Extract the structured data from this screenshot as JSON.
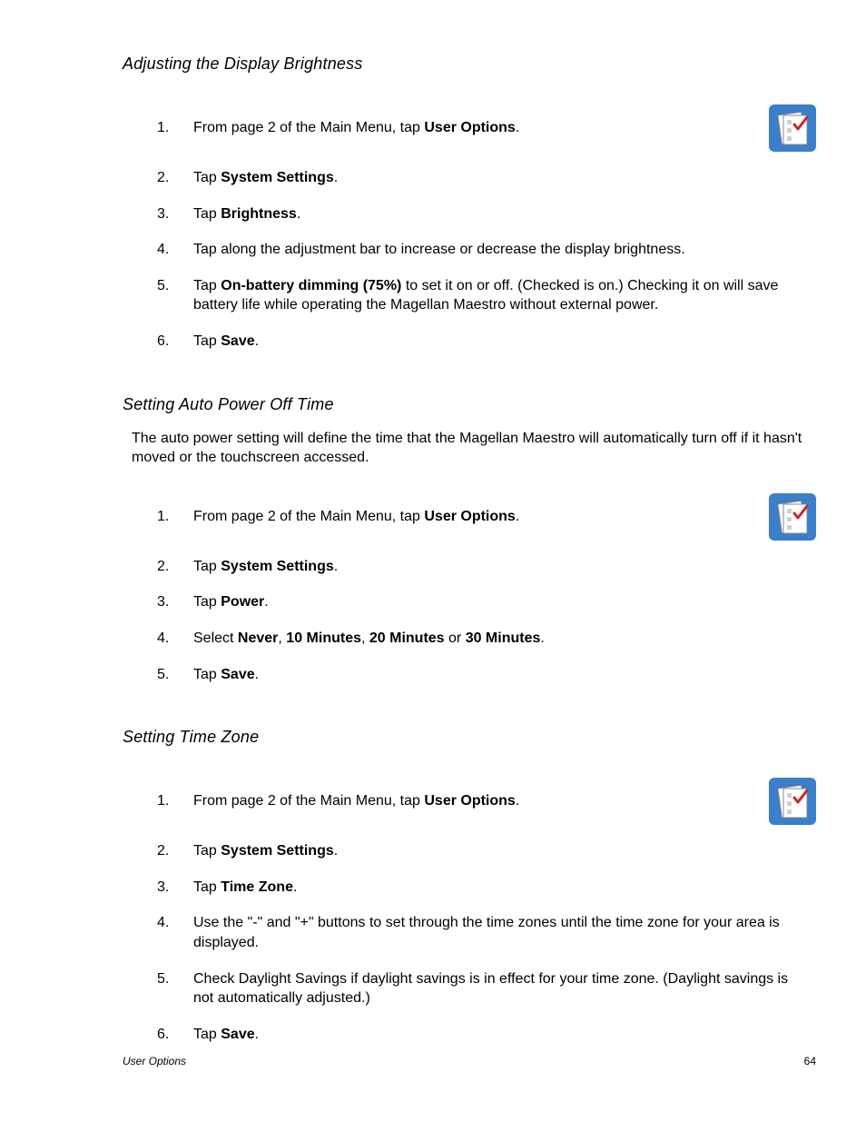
{
  "icon": {
    "bg_color": "#3b7ec9",
    "paper_color": "#ffffff",
    "check_color": "#c62828",
    "box_color": "#d0d0d0"
  },
  "sections": [
    {
      "heading": "Adjusting the Display Brightness",
      "intro": null,
      "steps": [
        {
          "num": "1.",
          "has_icon": true,
          "segments": [
            {
              "t": "From page 2 of the Main Menu, tap "
            },
            {
              "t": "User Options",
              "b": true
            },
            {
              "t": "."
            }
          ]
        },
        {
          "num": "2.",
          "has_icon": false,
          "segments": [
            {
              "t": "Tap "
            },
            {
              "t": "System Settings",
              "b": true
            },
            {
              "t": "."
            }
          ]
        },
        {
          "num": "3.",
          "has_icon": false,
          "segments": [
            {
              "t": "Tap "
            },
            {
              "t": "Brightness",
              "b": true
            },
            {
              "t": "."
            }
          ]
        },
        {
          "num": "4.",
          "has_icon": false,
          "segments": [
            {
              "t": "Tap along the adjustment bar to increase or decrease the display brightness."
            }
          ]
        },
        {
          "num": "5.",
          "has_icon": false,
          "segments": [
            {
              "t": "Tap "
            },
            {
              "t": "On-battery dimming (75%)",
              "b": true
            },
            {
              "t": " to set it on or off.  (Checked is on.)  Checking it on will save battery life while operating the Magellan Maestro without external power."
            }
          ]
        },
        {
          "num": "6.",
          "has_icon": false,
          "segments": [
            {
              "t": "Tap "
            },
            {
              "t": "Save",
              "b": true
            },
            {
              "t": "."
            }
          ]
        }
      ]
    },
    {
      "heading": "Setting Auto Power Off Time",
      "intro": "The auto power setting will define the time that the Magellan Maestro will automatically turn off if it hasn't moved or the touchscreen accessed.",
      "steps": [
        {
          "num": "1.",
          "has_icon": true,
          "segments": [
            {
              "t": "From page 2 of the Main Menu, tap "
            },
            {
              "t": "User Options",
              "b": true
            },
            {
              "t": "."
            }
          ]
        },
        {
          "num": "2.",
          "has_icon": false,
          "segments": [
            {
              "t": "Tap "
            },
            {
              "t": "System Settings",
              "b": true
            },
            {
              "t": "."
            }
          ]
        },
        {
          "num": "3.",
          "has_icon": false,
          "segments": [
            {
              "t": "Tap "
            },
            {
              "t": "Power",
              "b": true
            },
            {
              "t": "."
            }
          ]
        },
        {
          "num": "4.",
          "has_icon": false,
          "segments": [
            {
              "t": "Select "
            },
            {
              "t": "Never",
              "b": true
            },
            {
              "t": ", "
            },
            {
              "t": "10 Minutes",
              "b": true
            },
            {
              "t": ", "
            },
            {
              "t": "20 Minutes",
              "b": true
            },
            {
              "t": " or "
            },
            {
              "t": "30 Minutes",
              "b": true
            },
            {
              "t": "."
            }
          ]
        },
        {
          "num": "5.",
          "has_icon": false,
          "segments": [
            {
              "t": "Tap "
            },
            {
              "t": "Save",
              "b": true
            },
            {
              "t": "."
            }
          ]
        }
      ]
    },
    {
      "heading": "Setting Time Zone",
      "intro": null,
      "steps": [
        {
          "num": "1.",
          "has_icon": true,
          "segments": [
            {
              "t": "From page 2 of the Main Menu, tap "
            },
            {
              "t": "User Options",
              "b": true
            },
            {
              "t": "."
            }
          ]
        },
        {
          "num": "2.",
          "has_icon": false,
          "segments": [
            {
              "t": "Tap "
            },
            {
              "t": "System Settings",
              "b": true
            },
            {
              "t": "."
            }
          ]
        },
        {
          "num": "3.",
          "has_icon": false,
          "segments": [
            {
              "t": "Tap "
            },
            {
              "t": "Time Zone",
              "b": true
            },
            {
              "t": "."
            }
          ]
        },
        {
          "num": "4.",
          "has_icon": false,
          "segments": [
            {
              "t": "Use the \"-\" and \"+\" buttons to set through the time zones until the time zone for your area is displayed."
            }
          ]
        },
        {
          "num": "5.",
          "has_icon": false,
          "segments": [
            {
              "t": "Check Daylight Savings if daylight savings is in effect for your time zone.  (Daylight savings is not automatically adjusted.)"
            }
          ]
        },
        {
          "num": "6.",
          "has_icon": false,
          "segments": [
            {
              "t": "Tap "
            },
            {
              "t": "Save",
              "b": true
            },
            {
              "t": "."
            }
          ]
        }
      ]
    }
  ],
  "footer": {
    "title": "User Options",
    "page": "64"
  }
}
